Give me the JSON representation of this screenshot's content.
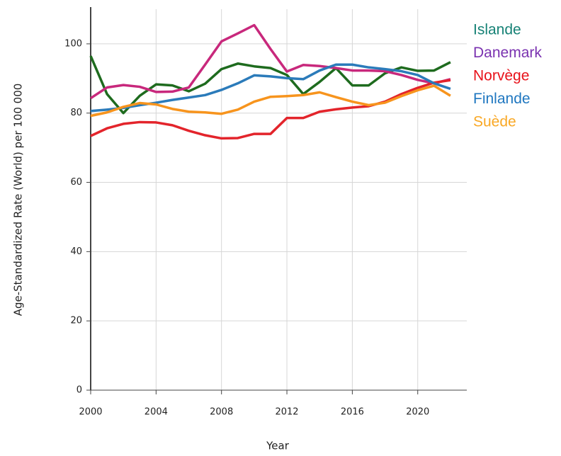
{
  "chart_data": {
    "type": "line",
    "xlabel": "Year",
    "ylabel": "Age-Standardized Rate (World) per 100 000",
    "x": [
      2000,
      2001,
      2002,
      2003,
      2004,
      2005,
      2006,
      2007,
      2008,
      2009,
      2010,
      2011,
      2012,
      2013,
      2014,
      2015,
      2016,
      2017,
      2018,
      2019,
      2020,
      2021,
      2022
    ],
    "series": [
      {
        "name": "Islande",
        "color": "#1e6b1e",
        "label_color": "#178276",
        "values": [
          96.5,
          85.5,
          80,
          85,
          88.3,
          88,
          86.3,
          88.5,
          92.7,
          94.3,
          93.5,
          93,
          91,
          85.5,
          89,
          93,
          88,
          88,
          91.5,
          93.2,
          92.2,
          92.3,
          94.7
        ]
      },
      {
        "name": "Danemark",
        "color": "#c8287c",
        "label_color": "#7a32b0",
        "values": [
          84.3,
          87.4,
          88.1,
          87.6,
          86.1,
          86.2,
          87.4,
          94,
          100.7,
          103,
          105.4,
          98.5,
          92,
          93.9,
          93.6,
          93,
          92.3,
          92.3,
          92.1,
          91,
          89.6,
          88.6,
          89.8
        ]
      },
      {
        "name": "Norvège",
        "color": "#e3242b",
        "label_color": "#e8131b",
        "values": [
          73.4,
          75.6,
          76.9,
          77.4,
          77.3,
          76.5,
          74.9,
          73.6,
          72.7,
          72.8,
          74,
          74,
          78.6,
          78.6,
          80.4,
          81.1,
          81.6,
          82,
          83.3,
          85.5,
          87.3,
          88.8,
          89.5
        ]
      },
      {
        "name": "Finlande",
        "color": "#2b7bba",
        "label_color": "#1f77c0",
        "values": [
          80.6,
          81,
          81.5,
          82.3,
          83,
          83.8,
          84.5,
          85.2,
          86.7,
          88.6,
          90.9,
          90.6,
          90.1,
          89.8,
          92.3,
          94,
          94,
          93.2,
          92.7,
          92.1,
          91,
          88.6,
          87
        ]
      },
      {
        "name": "Suède",
        "color": "#f7941d",
        "label_color": "#f9a825",
        "values": [
          79.2,
          80.2,
          81.8,
          82.9,
          82.5,
          81.2,
          80.4,
          80.2,
          79.8,
          81,
          83.3,
          84.7,
          84.9,
          85.2,
          86,
          84.6,
          83.3,
          82.3,
          83,
          84.9,
          86.6,
          87.9,
          85
        ]
      }
    ],
    "xlim": [
      2000,
      2023
    ],
    "xticks": [
      2000,
      2004,
      2008,
      2012,
      2016,
      2020
    ],
    "ylim": [
      0,
      110
    ],
    "yticks": [
      0,
      20,
      40,
      60,
      80,
      100
    ],
    "grid": true
  }
}
